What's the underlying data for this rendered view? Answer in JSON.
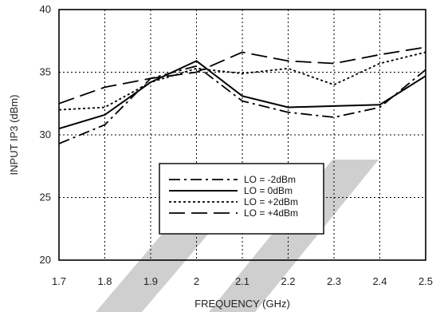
{
  "chart_data": {
    "type": "line",
    "xlabel": "FREQUENCY (GHz)",
    "ylabel": "INPUT IP3 (dBm)",
    "xlim": [
      1.7,
      2.5
    ],
    "ylim": [
      20,
      40
    ],
    "x_ticks": [
      "1.7",
      "1.8",
      "1.9",
      "2",
      "2.1",
      "2.2",
      "2.3",
      "2.4",
      "2.5"
    ],
    "y_ticks": [
      "20",
      "25",
      "30",
      "35",
      "40"
    ],
    "grid": true,
    "legend_position": "lower-middle",
    "watermark_color": "#cfcfcf",
    "series": [
      {
        "name": "LO = -2dBm",
        "style": "dash-dot",
        "x": [
          1.7,
          1.8,
          1.9,
          2.0,
          2.1,
          2.2,
          2.3,
          2.4,
          2.5
        ],
        "y": [
          29.3,
          30.8,
          34.5,
          35.5,
          32.7,
          31.8,
          31.4,
          32.2,
          35.2
        ]
      },
      {
        "name": "LO = 0dBm",
        "style": "solid",
        "x": [
          1.7,
          1.8,
          1.9,
          2.0,
          2.1,
          2.2,
          2.3,
          2.4,
          2.5
        ],
        "y": [
          30.5,
          31.6,
          34.2,
          35.9,
          33.1,
          32.2,
          32.3,
          32.4,
          34.7
        ]
      },
      {
        "name": "LO = +2dBm",
        "style": "dotted",
        "x": [
          1.7,
          1.8,
          1.9,
          2.0,
          2.1,
          2.2,
          2.3,
          2.4,
          2.5
        ],
        "y": [
          32.0,
          32.2,
          34.2,
          35.3,
          34.9,
          35.3,
          34.0,
          35.7,
          36.6
        ]
      },
      {
        "name": "LO = +4dBm",
        "style": "long-dash",
        "x": [
          1.7,
          1.8,
          1.9,
          2.0,
          2.1,
          2.2,
          2.3,
          2.4,
          2.5
        ],
        "y": [
          32.5,
          33.8,
          34.5,
          35.0,
          36.6,
          35.9,
          35.7,
          36.4,
          37.0
        ]
      }
    ]
  }
}
